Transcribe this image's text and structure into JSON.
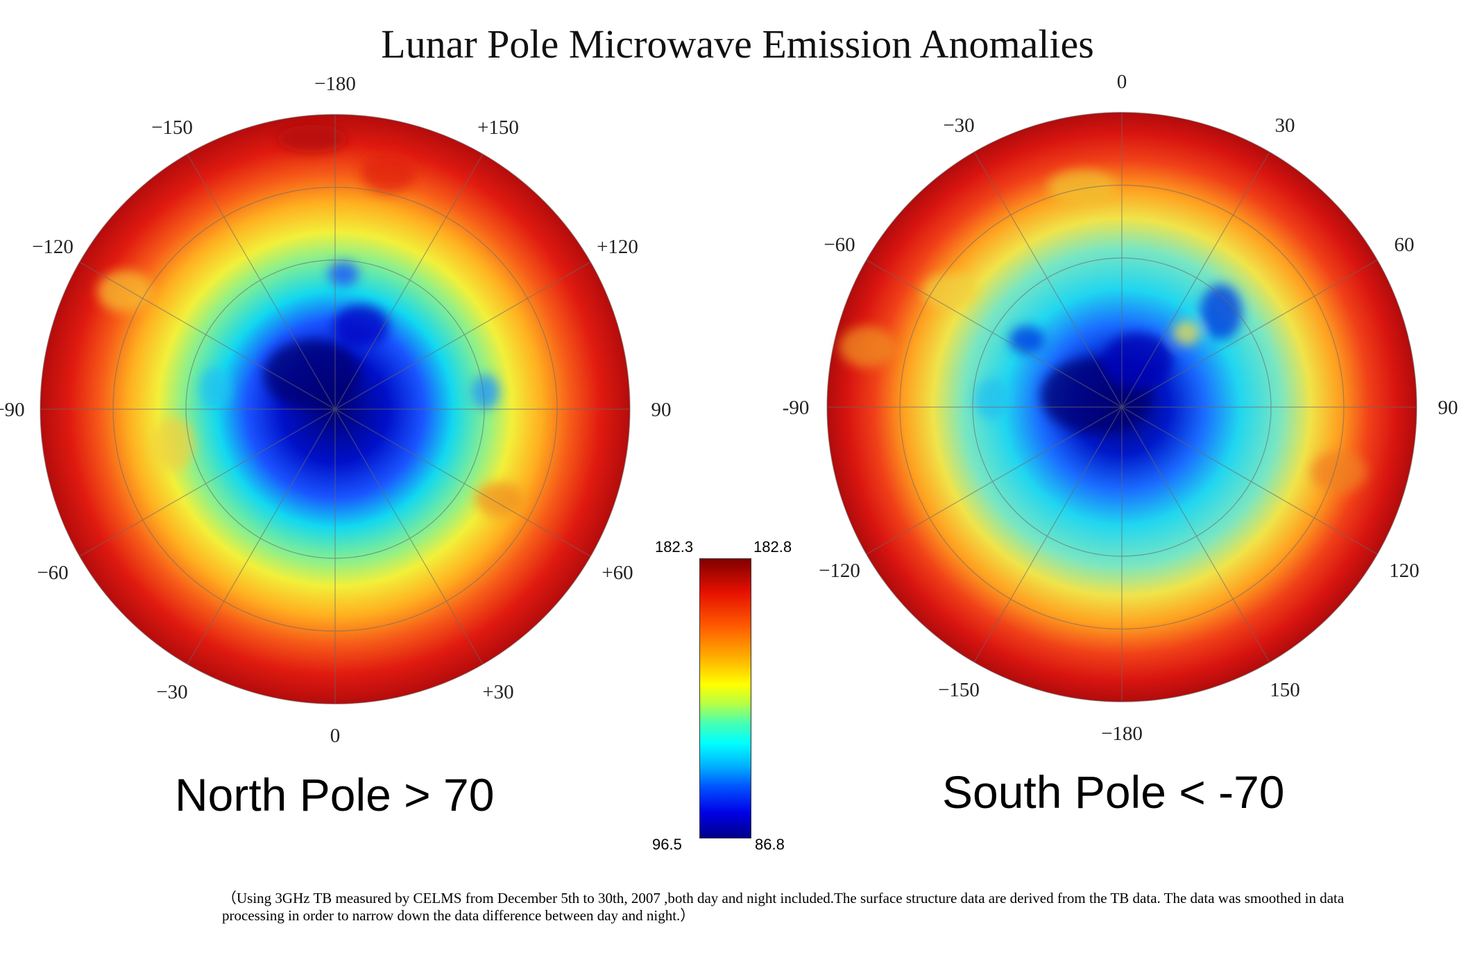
{
  "chart_data": {
    "type": "heatmap",
    "title": "Lunar Pole Microwave Emission Anomalies",
    "colorbar": {
      "top_left": "182.3",
      "top_right": "182.8",
      "bottom_left": "96.5",
      "bottom_right": "86.8",
      "colors": [
        "#800000",
        "#e61000",
        "#ff5a00",
        "#ffb400",
        "#ffff00",
        "#b4ff46",
        "#46ffb4",
        "#00ffff",
        "#00b4ff",
        "#0050ff",
        "#0000e6",
        "#00008a"
      ]
    },
    "panels": [
      {
        "label": "North Pole > 70",
        "longitude_ticks": [
          {
            "angle": 180,
            "text": "−180"
          },
          {
            "angle": -150,
            "text": "−150"
          },
          {
            "angle": 150,
            "text": "+150"
          },
          {
            "angle": -120,
            "text": "−120"
          },
          {
            "angle": 120,
            "text": "+120"
          },
          {
            "angle": -90,
            "text": "−90"
          },
          {
            "angle": 90,
            "text": "90"
          },
          {
            "angle": -60,
            "text": "−60"
          },
          {
            "angle": 60,
            "text": "+60"
          },
          {
            "angle": -30,
            "text": "−30"
          },
          {
            "angle": 30,
            "text": "+30"
          },
          {
            "angle": 0,
            "text": "0"
          }
        ]
      },
      {
        "label": "South Pole < -70",
        "longitude_ticks": [
          {
            "angle": 0,
            "text": "0"
          },
          {
            "angle": -30,
            "text": "−30"
          },
          {
            "angle": 30,
            "text": "30"
          },
          {
            "angle": -60,
            "text": "−60"
          },
          {
            "angle": 60,
            "text": "60"
          },
          {
            "angle": -90,
            "text": "-90"
          },
          {
            "angle": 90,
            "text": "90"
          },
          {
            "angle": -120,
            "text": "−120"
          },
          {
            "angle": 120,
            "text": "120"
          },
          {
            "angle": -150,
            "text": "−150"
          },
          {
            "angle": 150,
            "text": "150"
          },
          {
            "angle": 180,
            "text": "−180"
          }
        ]
      }
    ],
    "footnote": "（Using 3GHz TB measured by CELMS from December 5th to 30th, 2007 ,both day and night included.The surface structure data are derived from the TB data. The data was smoothed in data processing in order to narrow down the data difference between day and night.）"
  }
}
